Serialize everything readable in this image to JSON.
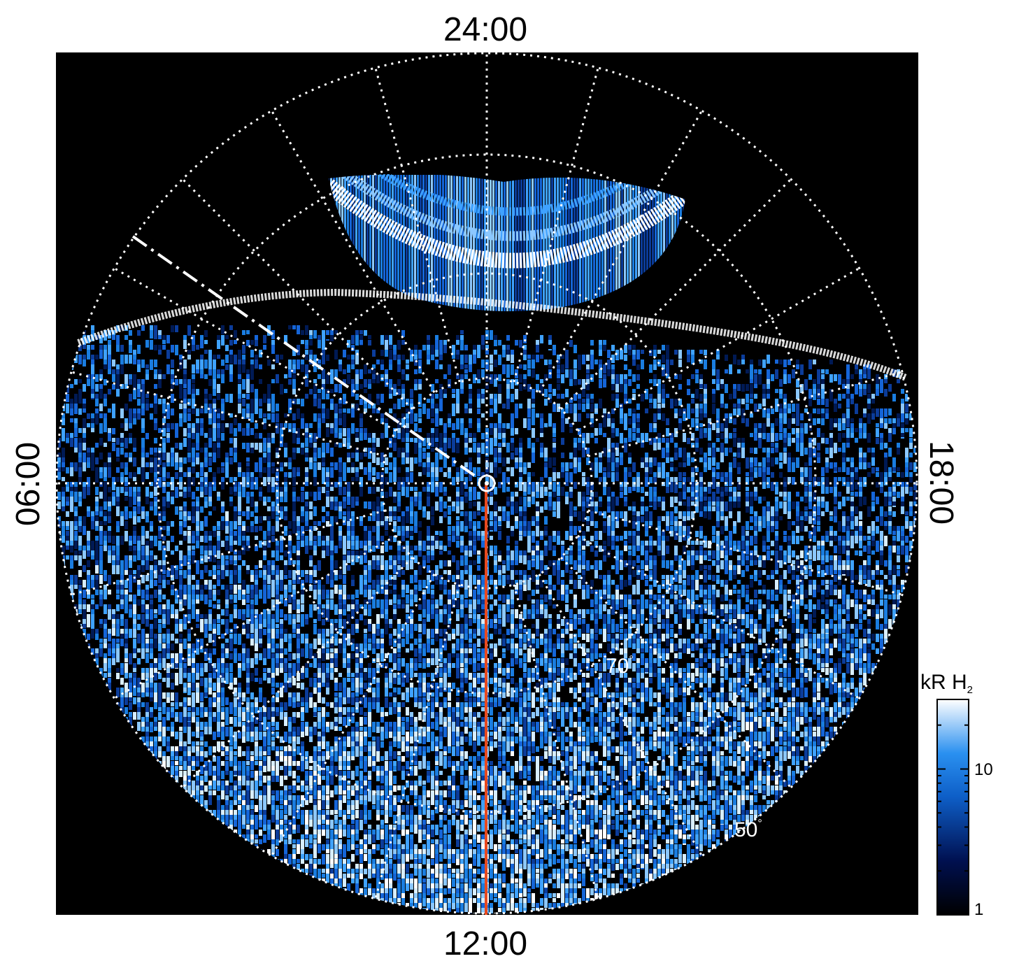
{
  "figure": {
    "local_time_labels": {
      "top": "24:00",
      "bottom": "12:00",
      "left": "06:00",
      "right": "18:00"
    },
    "latitude_labels": [
      {
        "value": "70",
        "degree": "°"
      },
      {
        "value": "50",
        "degree": "°"
      }
    ],
    "colorbar": {
      "unit": "kR H",
      "unit_subscript": "2",
      "scale": "log",
      "range": [
        1,
        30
      ],
      "tick_labels": [
        "10",
        "1"
      ],
      "colors": {
        "low": "#000000",
        "mid_dark": "#00205a",
        "mid": "#1a7de0",
        "high": "#ffffff"
      }
    },
    "colors": {
      "background": "#000000",
      "grid": "#ffffff",
      "meridian_line": "#e8491e",
      "emission_blue": "#1a7de0",
      "emission_light": "#bfe3ff"
    }
  }
}
